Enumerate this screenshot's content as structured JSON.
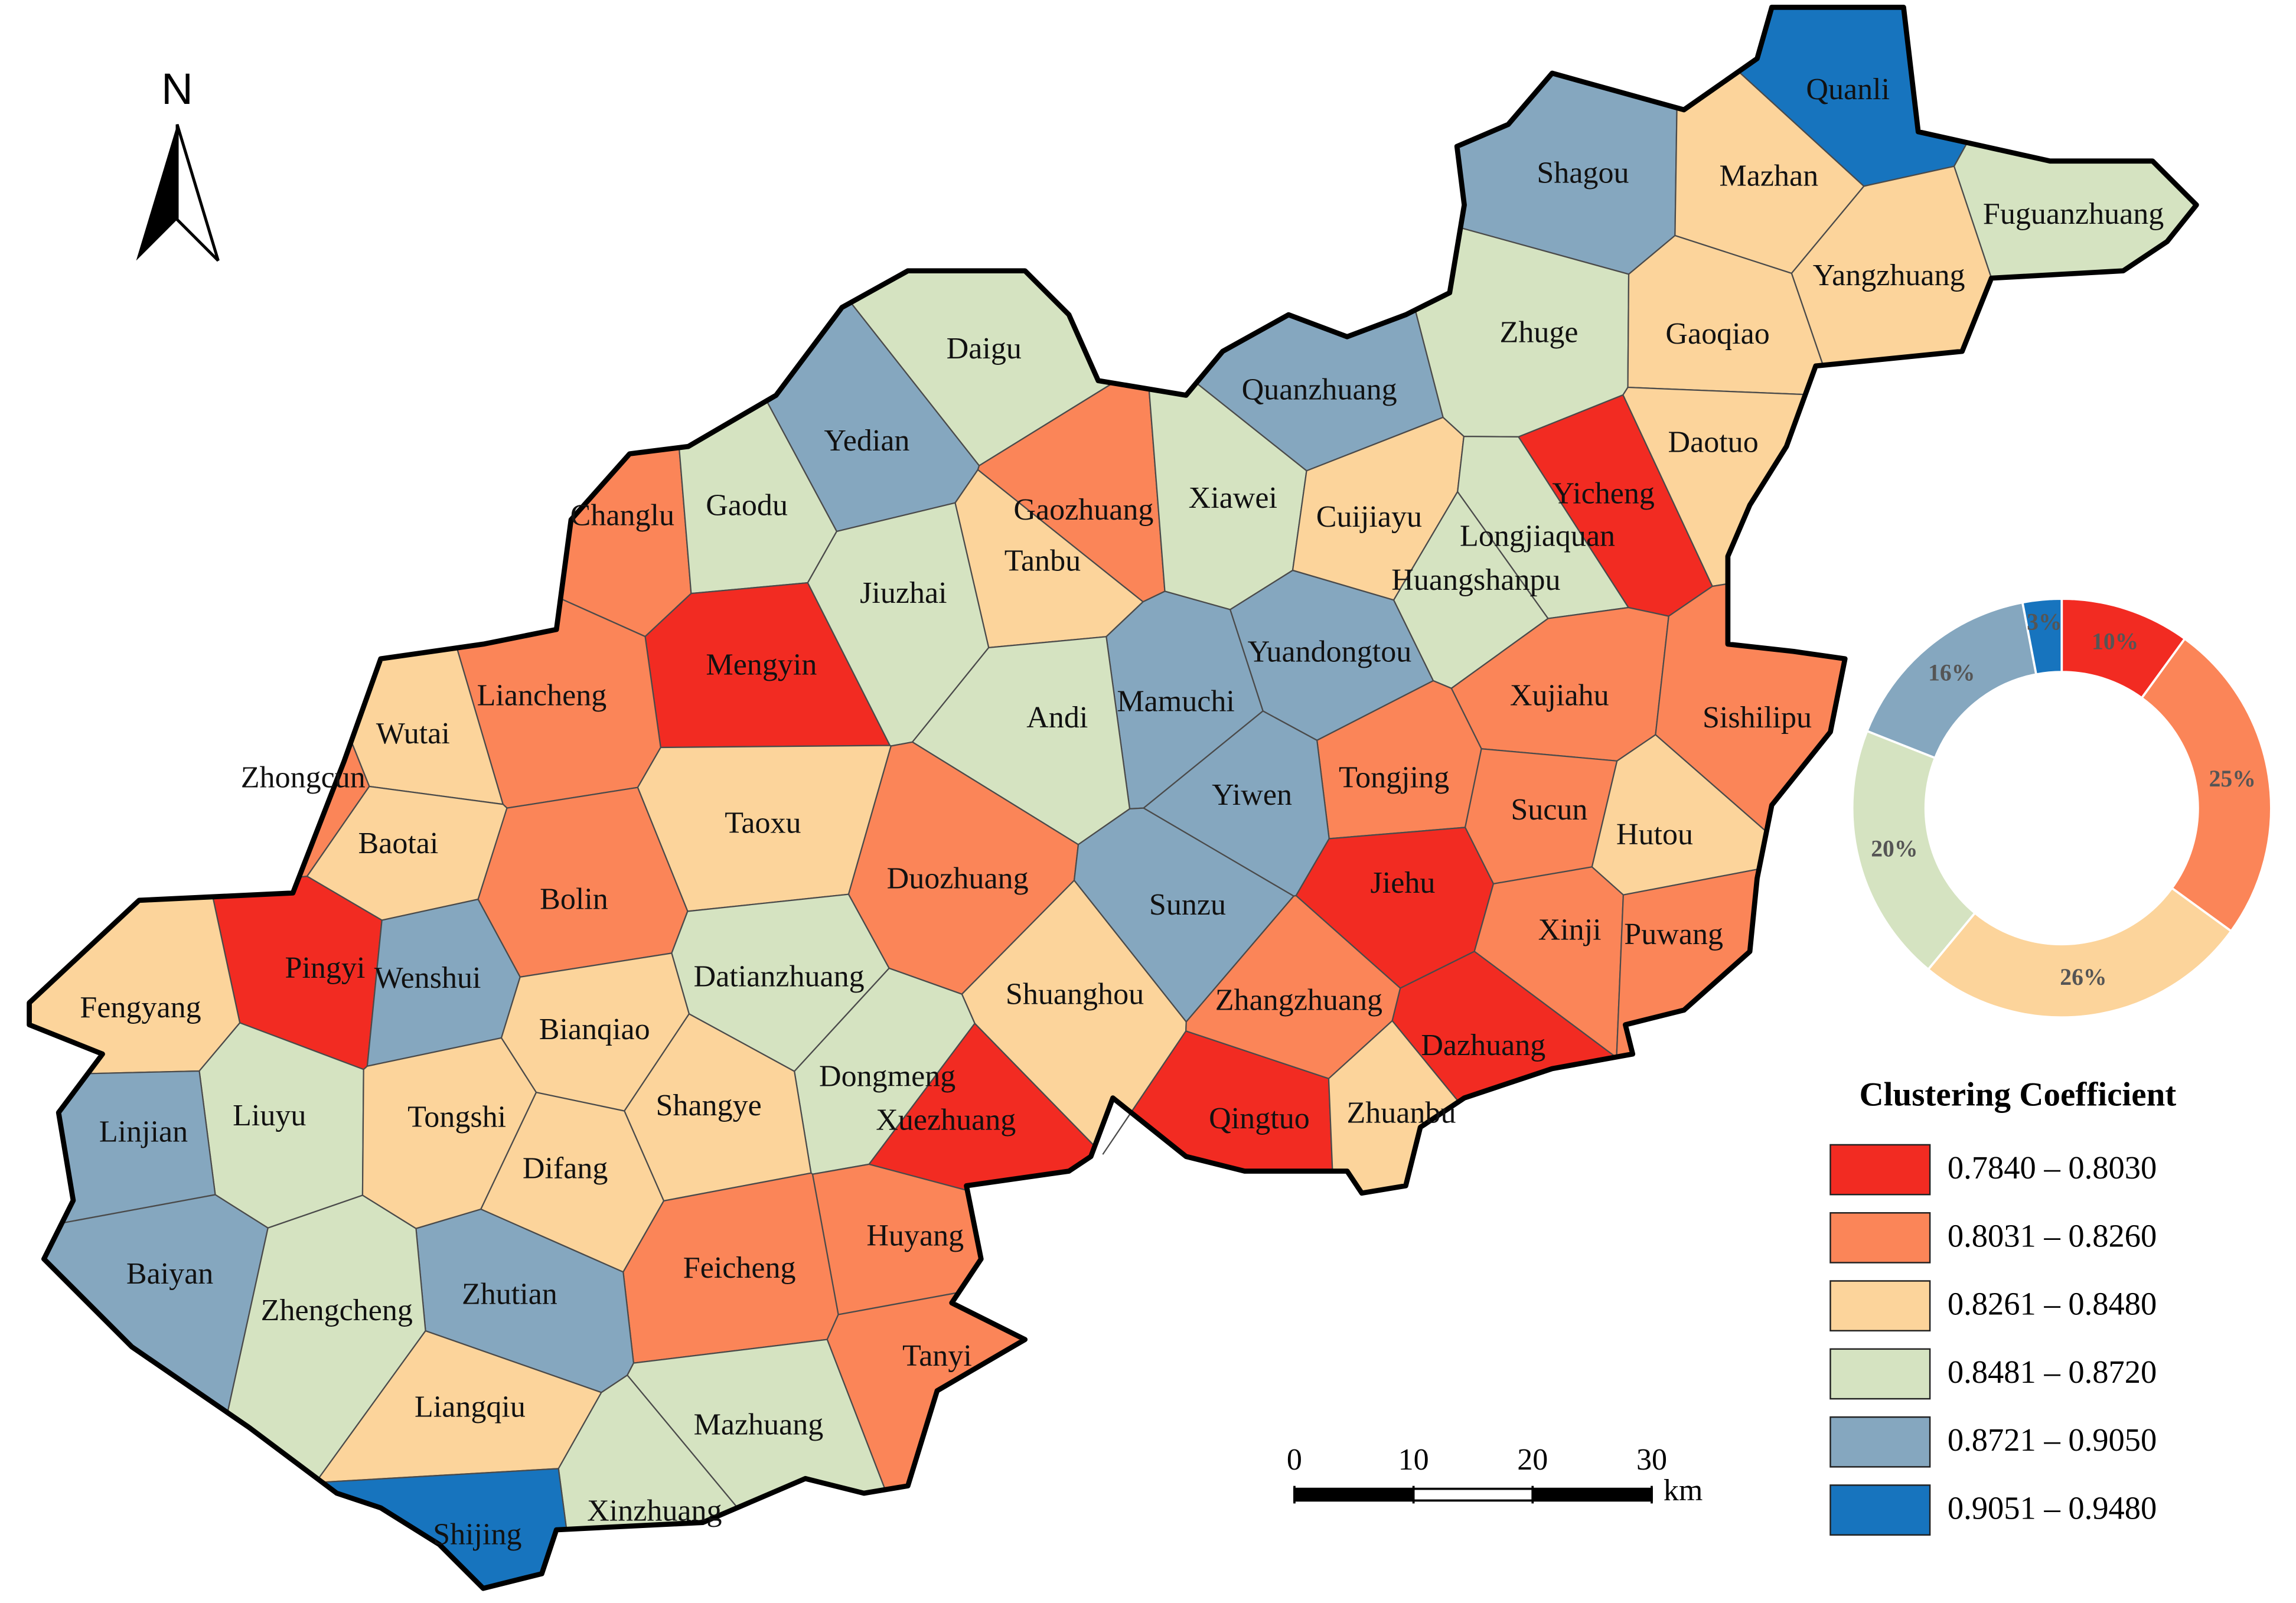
{
  "north_label": "N",
  "regions": [
    {
      "name": "Quanli",
      "color": "#1774be"
    },
    {
      "name": "Shagou",
      "color": "#85a7bf"
    },
    {
      "name": "Mazhan",
      "color": "#fcd49b"
    },
    {
      "name": "Fuguanzhuang",
      "color": "#d5e3c1"
    },
    {
      "name": "Yangzhuang",
      "color": "#fcd49b"
    },
    {
      "name": "Zhuge",
      "color": "#d5e3c1"
    },
    {
      "name": "Gaoqiao",
      "color": "#fcd49b"
    },
    {
      "name": "Daigu",
      "color": "#d5e3c1"
    },
    {
      "name": "Quanzhuang",
      "color": "#85a7bf"
    },
    {
      "name": "Daotuo",
      "color": "#fcd49b"
    },
    {
      "name": "Yedian",
      "color": "#85a7bf"
    },
    {
      "name": "Yicheng",
      "color": "#f22b22"
    },
    {
      "name": "Changlu",
      "color": "#fb8558"
    },
    {
      "name": "Gaodu",
      "color": "#d5e3c1"
    },
    {
      "name": "Gaozhuang",
      "color": "#fb8558"
    },
    {
      "name": "Xiawei",
      "color": "#d5e3c1"
    },
    {
      "name": "Cuijiayu",
      "color": "#fcd49b"
    },
    {
      "name": "Longjiaquan",
      "color": "#d5e3c1"
    },
    {
      "name": "Tanbu",
      "color": "#fcd49b"
    },
    {
      "name": "Jiuzhai",
      "color": "#d5e3c1"
    },
    {
      "name": "Huangshanpu",
      "color": "#d5e3c1"
    },
    {
      "name": "Mengyin",
      "color": "#f22b22"
    },
    {
      "name": "Yuandongtou",
      "color": "#85a7bf"
    },
    {
      "name": "Liancheng",
      "color": "#fb8558"
    },
    {
      "name": "Xujiahu",
      "color": "#fb8558"
    },
    {
      "name": "Mamuchi",
      "color": "#85a7bf"
    },
    {
      "name": "Sishilipu",
      "color": "#fb8558"
    },
    {
      "name": "Wutai",
      "color": "#fcd49b"
    },
    {
      "name": "Andi",
      "color": "#d5e3c1"
    },
    {
      "name": "Zhongcun",
      "color": "#fb8558"
    },
    {
      "name": "Tongjing",
      "color": "#fb8558"
    },
    {
      "name": "Yiwen",
      "color": "#85a7bf"
    },
    {
      "name": "Taoxu",
      "color": "#fcd49b"
    },
    {
      "name": "Sucun",
      "color": "#fb8558"
    },
    {
      "name": "Hutou",
      "color": "#fcd49b"
    },
    {
      "name": "Baotai",
      "color": "#fcd49b"
    },
    {
      "name": "Duozhuang",
      "color": "#fb8558"
    },
    {
      "name": "Jiehu",
      "color": "#f22b22"
    },
    {
      "name": "Bolin",
      "color": "#fb8558"
    },
    {
      "name": "Sunzu",
      "color": "#85a7bf"
    },
    {
      "name": "Xinji",
      "color": "#fb8558"
    },
    {
      "name": "Puwang",
      "color": "#fb8558"
    },
    {
      "name": "Pingyi",
      "color": "#f22b22"
    },
    {
      "name": "Wenshui",
      "color": "#85a7bf"
    },
    {
      "name": "Datianzhuang",
      "color": "#d5e3c1"
    },
    {
      "name": "Fengyang",
      "color": "#fcd49b"
    },
    {
      "name": "Shuanghou",
      "color": "#fcd49b"
    },
    {
      "name": "Zhangzhuang",
      "color": "#fb8558"
    },
    {
      "name": "Bianqiao",
      "color": "#fcd49b"
    },
    {
      "name": "Dazhuang",
      "color": "#f22b22"
    },
    {
      "name": "Dongmeng",
      "color": "#d5e3c1"
    },
    {
      "name": "Liuyu",
      "color": "#d5e3c1"
    },
    {
      "name": "Tongshi",
      "color": "#fcd49b"
    },
    {
      "name": "Shangye",
      "color": "#fcd49b"
    },
    {
      "name": "Xuezhuang",
      "color": "#f22b22"
    },
    {
      "name": "Qingtuo",
      "color": "#f22b22"
    },
    {
      "name": "Zhuanbu",
      "color": "#fcd49b"
    },
    {
      "name": "Linjian",
      "color": "#85a7bf"
    },
    {
      "name": "Difang",
      "color": "#fcd49b"
    },
    {
      "name": "Huyang",
      "color": "#fb8558"
    },
    {
      "name": "Feicheng",
      "color": "#fb8558"
    },
    {
      "name": "Baiyan",
      "color": "#85a7bf"
    },
    {
      "name": "Zhutian",
      "color": "#85a7bf"
    },
    {
      "name": "Zhengcheng",
      "color": "#d5e3c1"
    },
    {
      "name": "Tanyi",
      "color": "#fb8558"
    },
    {
      "name": "Liangqiu",
      "color": "#fcd49b"
    },
    {
      "name": "Mazhuang",
      "color": "#d5e3c1"
    },
    {
      "name": "Xinzhuang",
      "color": "#d5e3c1"
    },
    {
      "name": "Shijing",
      "color": "#1774be"
    }
  ],
  "legend": {
    "title": "Clustering Coefficient",
    "items": [
      {
        "label": "0.7840 – 0.8030",
        "color": "#f22b22"
      },
      {
        "label": "0.8031 – 0.8260",
        "color": "#fb8558"
      },
      {
        "label": "0.8261 – 0.8480",
        "color": "#fcd49b"
      },
      {
        "label": "0.8481 – 0.8720",
        "color": "#d5e3c1"
      },
      {
        "label": "0.8721 – 0.9050",
        "color": "#85a7bf"
      },
      {
        "label": "0.9051 – 0.9480",
        "color": "#1774be"
      }
    ]
  },
  "scale_bar": {
    "ticks": [
      0,
      10,
      20,
      30
    ],
    "unit": "km"
  },
  "chart_data": {
    "type": "donut",
    "values": [
      10,
      25,
      26,
      20,
      16,
      3
    ],
    "value_labels": [
      "10%",
      "25%",
      "26%",
      "20%",
      "16%",
      "3%"
    ],
    "colors": [
      "#f22b22",
      "#fb8558",
      "#fcd49b",
      "#d5e3c1",
      "#85a7bf",
      "#1774be"
    ]
  }
}
